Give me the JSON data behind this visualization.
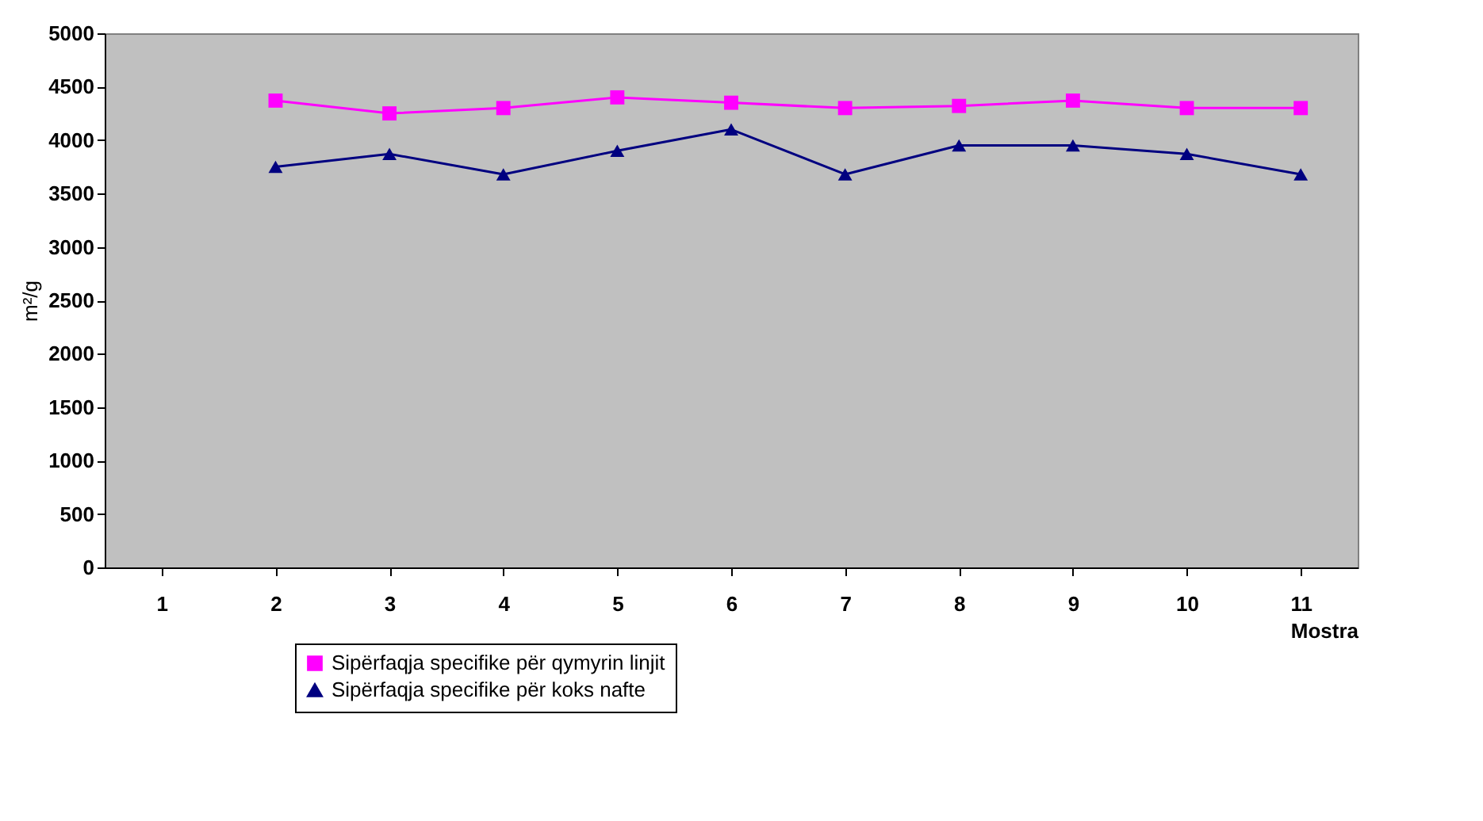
{
  "chart_data": {
    "type": "line",
    "xlabel": "Mostra",
    "ylabel": "m²/g",
    "categories": [
      "1",
      "2",
      "3",
      "4",
      "5",
      "6",
      "7",
      "8",
      "9",
      "10",
      "11"
    ],
    "series": [
      {
        "name": "Sipërfaqja specifike për qymyrin linjit",
        "color": "#ff00ff",
        "marker": "square",
        "values": [
          null,
          4370,
          4250,
          4300,
          4400,
          4350,
          4300,
          4320,
          4370,
          4300,
          4300
        ]
      },
      {
        "name": "Sipërfaqja specifike për koks nafte",
        "color": "#000080",
        "marker": "triangle",
        "values": [
          null,
          3750,
          3870,
          3680,
          3900,
          4100,
          3680,
          3950,
          3950,
          3870,
          3680
        ]
      }
    ],
    "ylim": [
      0,
      5000
    ],
    "yticks": [
      0,
      500,
      1000,
      1500,
      2000,
      2500,
      3000,
      3500,
      4000,
      4500,
      5000
    ],
    "grid": false,
    "legend": "bottom"
  }
}
